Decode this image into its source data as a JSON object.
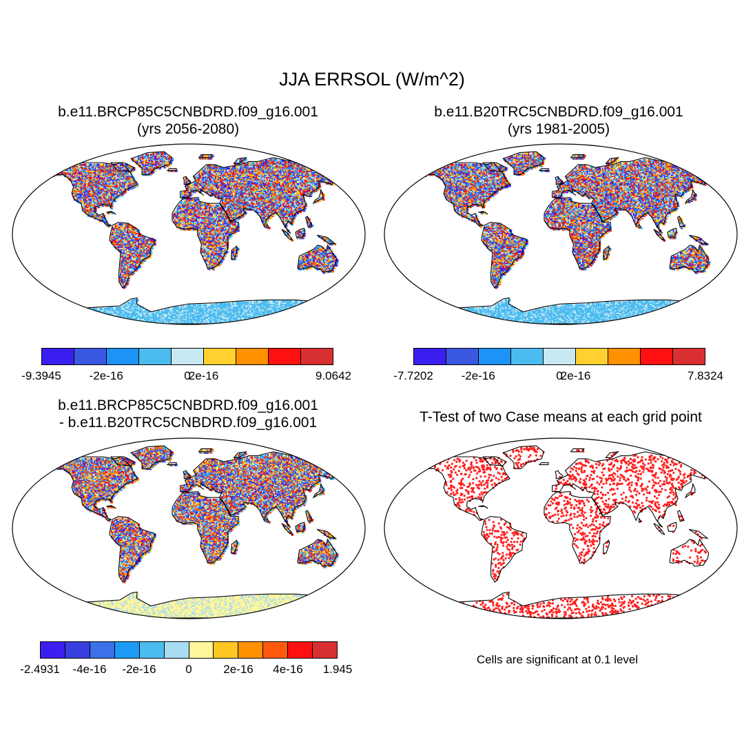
{
  "figure": {
    "title": "JJA ERRSOL (W/m^2)"
  },
  "panels": [
    {
      "id": "case1",
      "title_line1": "b.e11.BRCP85C5CNBDRD.f09_g16.001",
      "title_line2": "(yrs 2056-2080)",
      "colorbar": {
        "colors": [
          "#3b1ff0",
          "#3a58e0",
          "#1d93f5",
          "#4cbcf0",
          "#c8e8f4",
          "#ffd030",
          "#ff9000",
          "#ff1010",
          "#d83030"
        ],
        "labels": [
          "-9.3945",
          "-2e-16",
          "0",
          "2e-16",
          "9.0642"
        ]
      }
    },
    {
      "id": "case2",
      "title_line1": "b.e11.B20TRC5CNBDRD.f09_g16.001",
      "title_line2": "(yrs 1981-2005)",
      "colorbar": {
        "colors": [
          "#3b1ff0",
          "#3a58e0",
          "#1d93f5",
          "#4cbcf0",
          "#c8e8f4",
          "#ffd030",
          "#ff9000",
          "#ff1010",
          "#d83030"
        ],
        "labels": [
          "-7.7202",
          "-2e-16",
          "0",
          "2e-16",
          "7.8324"
        ]
      }
    },
    {
      "id": "diff",
      "title_line1": "b.e11.BRCP85C5CNBDRD.f09_g16.001",
      "title_line2": "- b.e11.B20TRC5CNBDRD.f09_g16.001",
      "colorbar": {
        "colors": [
          "#3b1ff0",
          "#3a40e0",
          "#3a70e8",
          "#1d9af5",
          "#4cbcf0",
          "#a8dcf2",
          "#fff59a",
          "#ffc820",
          "#ff9000",
          "#ff5a10",
          "#ff1010",
          "#d83030"
        ],
        "labels": [
          "-2.4931",
          "-4e-16",
          "-2e-16",
          "0",
          "2e-16",
          "4e-16",
          "1.945"
        ]
      }
    },
    {
      "id": "ttest",
      "title_line1": "T-Test of two Case means at each grid point",
      "note": "Cells are significant at 0.1 level",
      "dot_color": "#ff2020"
    }
  ]
}
